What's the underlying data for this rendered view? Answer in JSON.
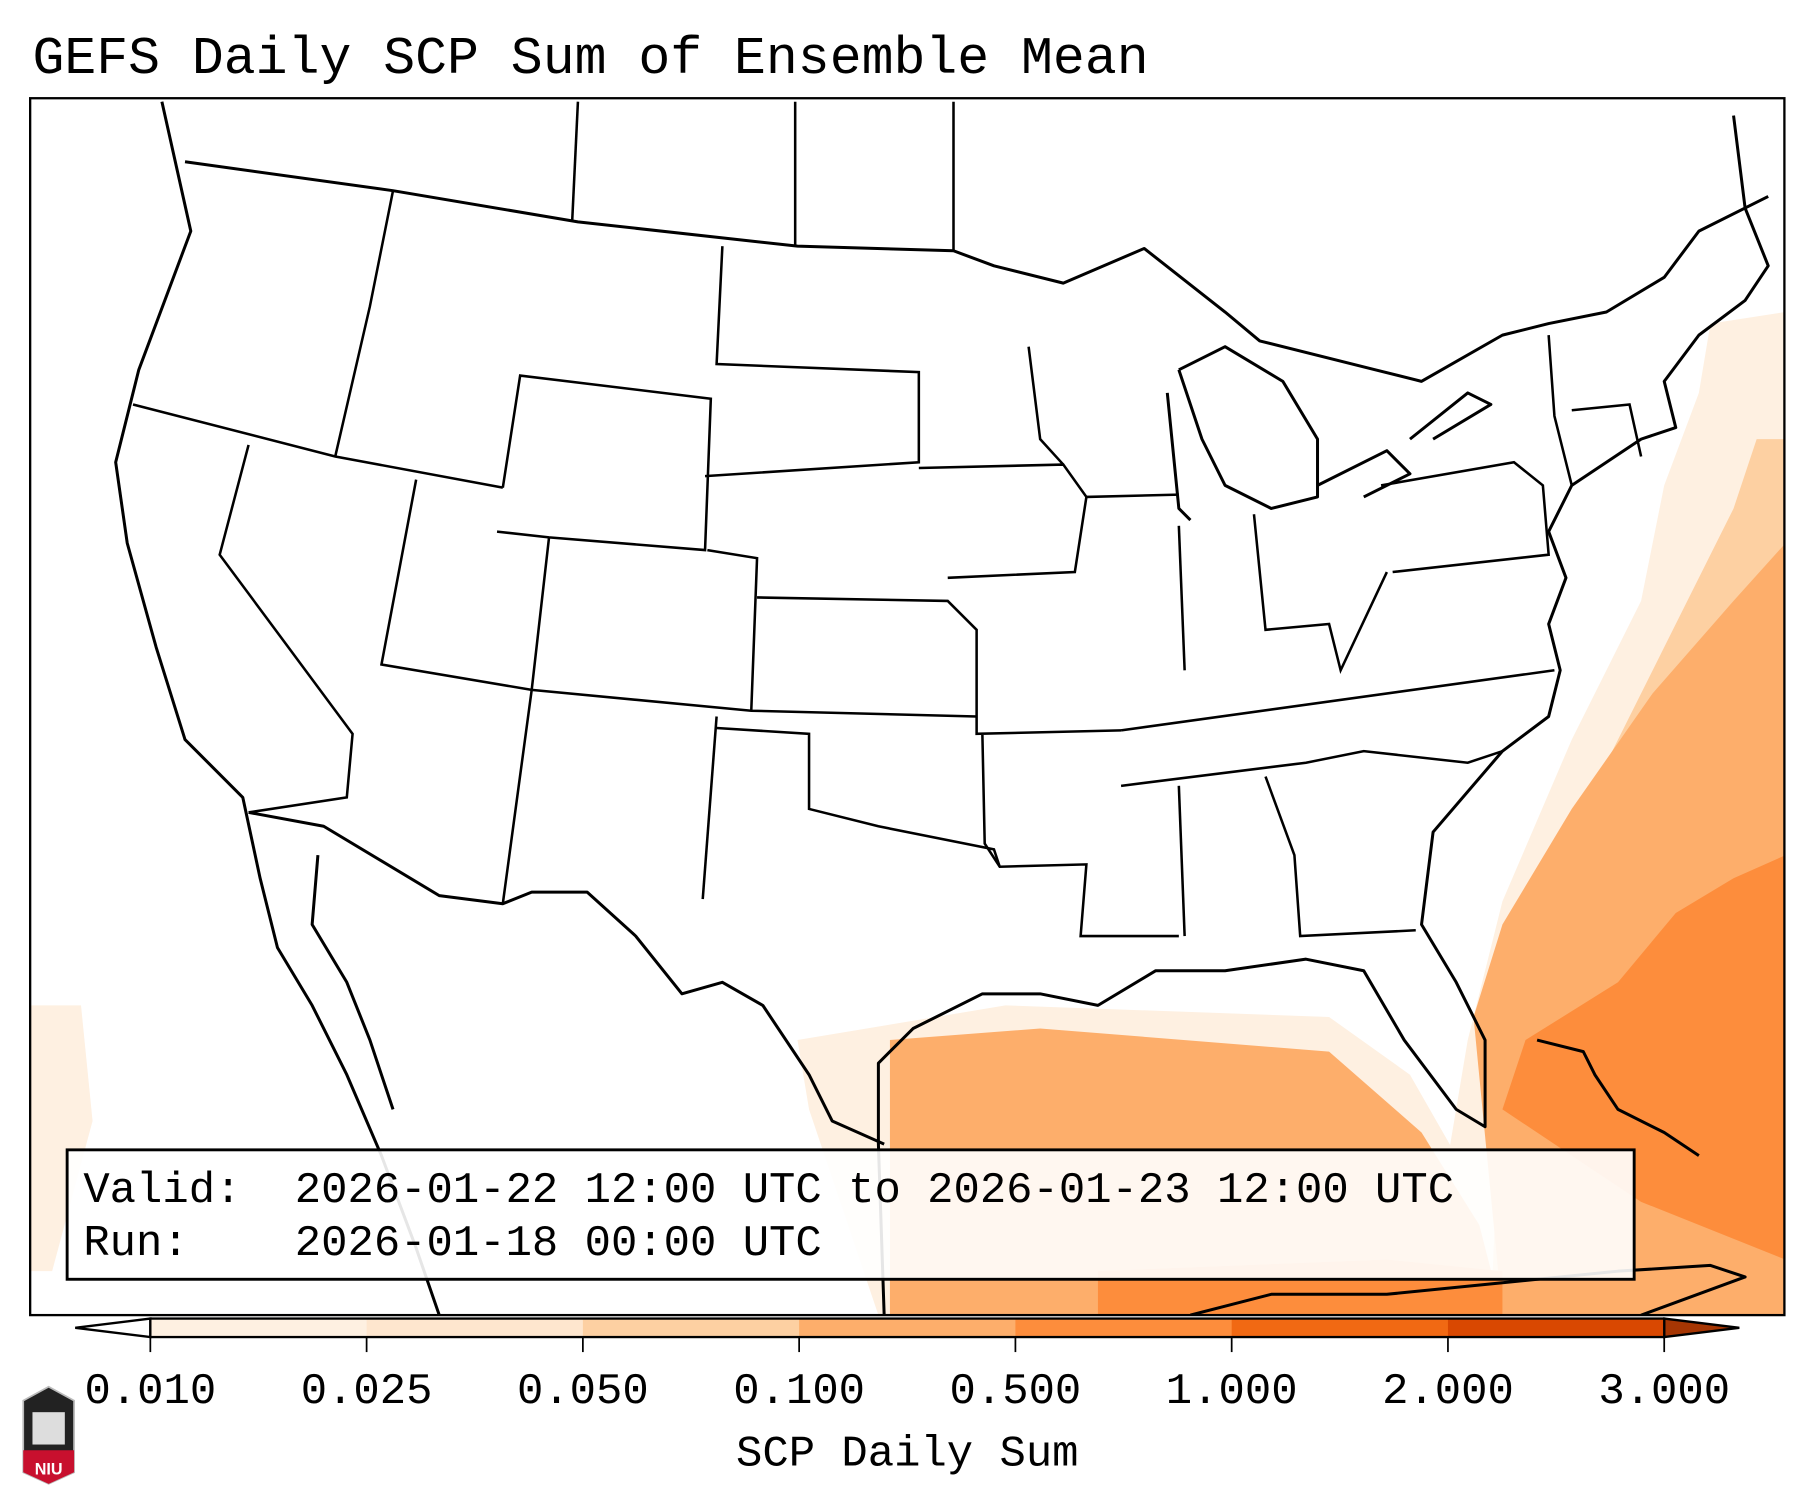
{
  "title": "GEFS Daily SCP Sum of Ensemble Mean",
  "info_box": {
    "valid_label": "Valid:",
    "valid_value": "2026-01-22 12:00 UTC to 2026-01-23 12:00 UTC",
    "run_label": "Run:",
    "run_value": "2026-01-18 00:00 UTC"
  },
  "colorbar": {
    "label": "SCP Daily Sum",
    "ticks": [
      "0.010",
      "0.025",
      "0.050",
      "0.100",
      "0.500",
      "1.000",
      "2.000",
      "3.000"
    ],
    "colors": [
      "#fef0e1",
      "#fee6ce",
      "#fdd0a2",
      "#fdae6b",
      "#fd8d3c",
      "#f16913",
      "#d94801"
    ],
    "under_color": "#ffffff",
    "over_color": "#a63603"
  },
  "logo": {
    "text": "NIU"
  }
}
